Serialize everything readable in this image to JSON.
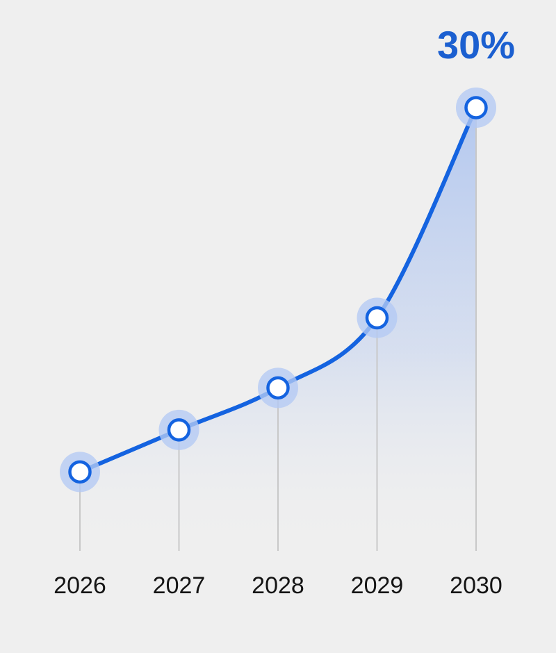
{
  "colors": {
    "background": "#efefef",
    "line": "#1463e0",
    "halo": "#b3c9f3",
    "area": "#8fb0ef",
    "marker_fill": "#ffffff",
    "guide": "#c8c8c8",
    "label_text": "#141414",
    "annotation": "#1b5fd0"
  },
  "chart_data": {
    "type": "line",
    "title": "",
    "xlabel": "",
    "ylabel": "",
    "categories": [
      "2026",
      "2027",
      "2028",
      "2029",
      "2030"
    ],
    "series": [
      {
        "values": [
          4,
          7,
          10,
          15,
          30
        ]
      }
    ],
    "ylim": [
      0,
      30
    ],
    "grid": false,
    "legend": "none",
    "area_fill": true,
    "smooth": true,
    "annotations": [
      {
        "category": "2030",
        "text": "30%"
      }
    ]
  }
}
